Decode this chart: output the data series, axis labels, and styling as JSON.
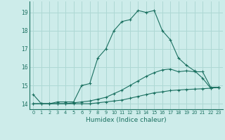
{
  "xlabel": "Humidex (Indice chaleur)",
  "ylabel": "",
  "xlim": [
    -0.5,
    23.5
  ],
  "ylim": [
    13.7,
    19.6
  ],
  "background_color": "#cdecea",
  "grid_color": "#aed8d4",
  "line_color": "#1a7060",
  "x_ticks": [
    0,
    1,
    2,
    3,
    4,
    5,
    6,
    7,
    8,
    9,
    10,
    11,
    12,
    13,
    14,
    15,
    16,
    17,
    18,
    19,
    20,
    21,
    22,
    23
  ],
  "y_ticks": [
    14,
    15,
    16,
    17,
    18,
    19
  ],
  "series1": {
    "x": [
      0,
      1,
      2,
      3,
      4,
      5,
      6,
      7,
      8,
      9,
      10,
      11,
      12,
      13,
      14,
      15,
      16,
      17,
      18,
      19,
      20,
      21,
      22,
      23
    ],
    "y": [
      14.5,
      14.0,
      14.0,
      14.1,
      14.1,
      14.1,
      15.0,
      15.1,
      16.5,
      17.0,
      18.0,
      18.5,
      18.6,
      19.1,
      19.0,
      19.1,
      18.0,
      17.5,
      16.5,
      16.1,
      15.8,
      15.4,
      14.85,
      14.9
    ]
  },
  "series2": {
    "x": [
      0,
      1,
      2,
      3,
      4,
      5,
      6,
      7,
      8,
      9,
      10,
      11,
      12,
      13,
      14,
      15,
      16,
      17,
      18,
      19,
      20,
      21,
      22,
      23
    ],
    "y": [
      14.0,
      14.0,
      14.0,
      14.0,
      14.0,
      14.05,
      14.1,
      14.15,
      14.25,
      14.35,
      14.55,
      14.75,
      15.0,
      15.25,
      15.5,
      15.7,
      15.85,
      15.9,
      15.75,
      15.8,
      15.75,
      15.75,
      14.9,
      14.9
    ]
  },
  "series3": {
    "x": [
      0,
      1,
      2,
      3,
      4,
      5,
      6,
      7,
      8,
      9,
      10,
      11,
      12,
      13,
      14,
      15,
      16,
      17,
      18,
      19,
      20,
      21,
      22,
      23
    ],
    "y": [
      14.0,
      14.0,
      14.0,
      14.0,
      14.0,
      14.0,
      14.0,
      14.0,
      14.05,
      14.1,
      14.15,
      14.2,
      14.3,
      14.4,
      14.5,
      14.6,
      14.65,
      14.72,
      14.75,
      14.78,
      14.8,
      14.82,
      14.85,
      14.9
    ]
  }
}
